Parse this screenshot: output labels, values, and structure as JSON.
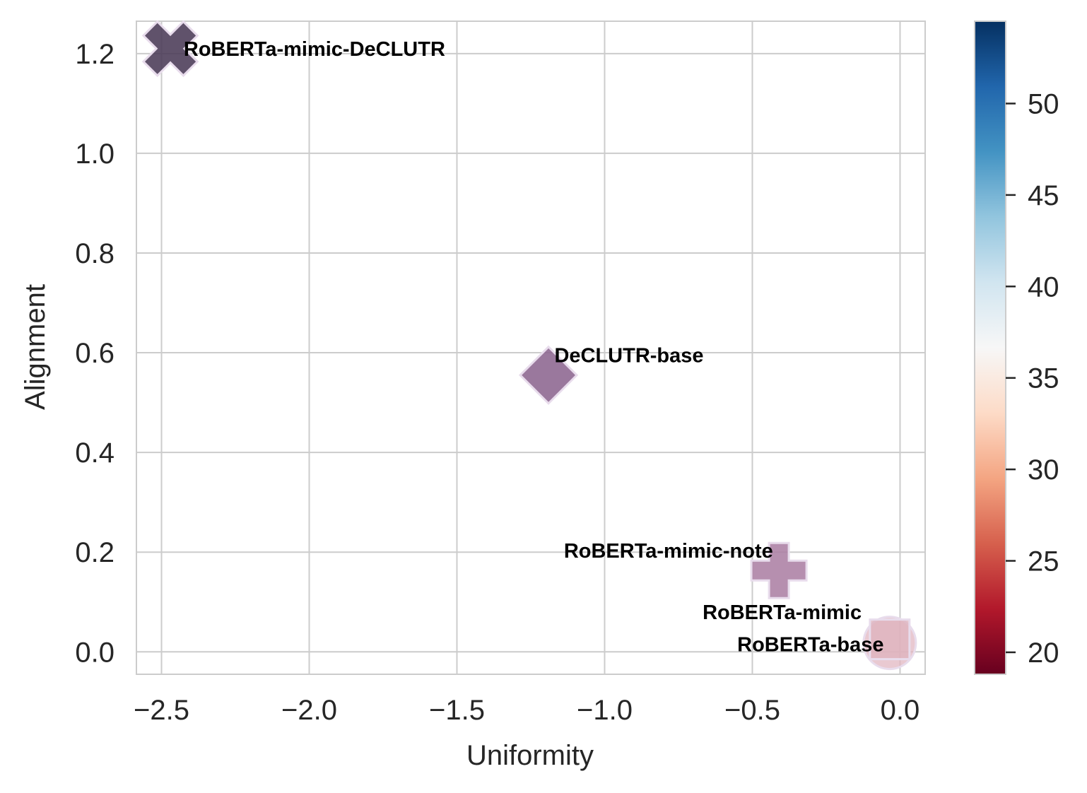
{
  "chart_data": {
    "type": "scatter",
    "title": "",
    "xlabel": "Uniformity",
    "ylabel": "Alignment",
    "xlim": [
      -2.585,
      0.085
    ],
    "ylim": [
      -0.045,
      1.265
    ],
    "xticks": [
      -2.5,
      -2.0,
      -1.5,
      -1.0,
      -0.5,
      0.0
    ],
    "xtick_labels": [
      "−2.5",
      "−2.0",
      "−1.5",
      "−1.0",
      "−0.5",
      "0.0"
    ],
    "yticks": [
      0.0,
      0.2,
      0.4,
      0.6,
      0.8,
      1.0,
      1.2
    ],
    "ytick_labels": [
      "0.0",
      "0.2",
      "0.4",
      "0.6",
      "0.8",
      "1.0",
      "1.2"
    ],
    "grid": true,
    "colorbar": {
      "cmap": "RdBu",
      "range": [
        18.8,
        54.5
      ],
      "ticks": [
        20,
        25,
        30,
        35,
        40,
        45,
        50
      ],
      "tick_labels": [
        "20",
        "25",
        "30",
        "35",
        "40",
        "45",
        "50"
      ]
    },
    "points": [
      {
        "name": "RoBERTa-mimic-DeCLUTR",
        "x": -2.47,
        "y": 1.21,
        "marker": "x",
        "color": "#4a3a56",
        "label_anchor": "start",
        "label_dx": 0.045,
        "label_dy": 0.0
      },
      {
        "name": "DeCLUTR-base",
        "x": -1.19,
        "y": 0.555,
        "marker": "diamond",
        "color": "#8c6590",
        "label_anchor": "start",
        "label_dx": 0.02,
        "label_dy": 0.04
      },
      {
        "name": "RoBERTa-mimic-note",
        "x": -0.41,
        "y": 0.163,
        "marker": "plus",
        "color": "#ac7fa4",
        "label_anchor": "end",
        "label_dx": -0.02,
        "label_dy": 0.04
      },
      {
        "name": "RoBERTa-mimic",
        "x": -0.035,
        "y": 0.025,
        "marker": "square",
        "color": "#ddb2bc",
        "label_anchor": "end",
        "label_dx": -0.095,
        "label_dy": 0.055
      },
      {
        "name": "RoBERTa-base",
        "x": -0.035,
        "y": 0.018,
        "marker": "circle",
        "color": "#e2b7c2",
        "label_anchor": "end",
        "label_dx": -0.02,
        "label_dy": -0.003
      }
    ]
  }
}
